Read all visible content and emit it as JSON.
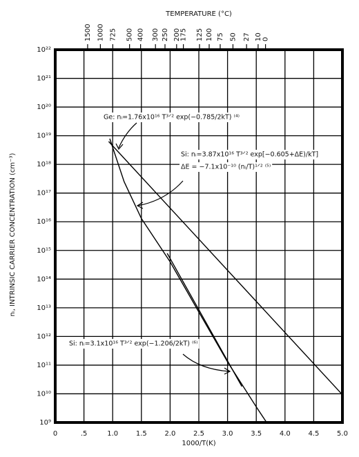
{
  "chart_data": {
    "type": "line",
    "top_axis_label": "TEMPERATURE (°C)",
    "x_axis_label": "1000/T(K)",
    "y_axis_label": "nᵢ, INTRINSIC CARRIER CONCENTRATION (cm⁻³)",
    "xlim": [
      0,
      5
    ],
    "xticks": [
      0,
      {
        "value": 0.5,
        "label": ".5"
      },
      {
        "value": 1,
        "label": "1.0"
      },
      1.5,
      {
        "value": 2,
        "label": "2.0"
      },
      2.5,
      {
        "value": 3,
        "label": "3.0"
      },
      3.5,
      {
        "value": 4,
        "label": "4.0"
      },
      4.5,
      {
        "value": 5,
        "label": "5.0"
      }
    ],
    "x2ticks": [
      {
        "value": 0.564,
        "label": "1500"
      },
      {
        "value": 0.786,
        "label": "1000"
      },
      {
        "value": 1.002,
        "label": "725"
      },
      {
        "value": 1.294,
        "label": "500"
      },
      {
        "value": 1.486,
        "label": "400"
      },
      {
        "value": 1.745,
        "label": "300"
      },
      {
        "value": 1.911,
        "label": "250"
      },
      {
        "value": 2.113,
        "label": "200"
      },
      {
        "value": 2.231,
        "label": "175"
      },
      {
        "value": 2.512,
        "label": "125"
      },
      {
        "value": 2.68,
        "label": "100"
      },
      {
        "value": 2.872,
        "label": "75"
      },
      {
        "value": 3.094,
        "label": "50"
      },
      {
        "value": 3.331,
        "label": "27"
      },
      {
        "value": 3.532,
        "label": "10"
      },
      {
        "value": 3.661,
        "label": "0"
      }
    ],
    "ylim": [
      1000000000.0,
      1e+22
    ],
    "yticks": [
      {
        "value": 1000000000.0,
        "label": "10⁹"
      },
      {
        "value": 10000000000.0,
        "label": "10¹⁰"
      },
      {
        "value": 100000000000.0,
        "label": "10¹¹"
      },
      {
        "value": 1000000000000.0,
        "label": "10¹²"
      },
      {
        "value": 10000000000000.0,
        "label": "10¹³"
      },
      {
        "value": 100000000000000.0,
        "label": "10¹⁴"
      },
      {
        "value": 1000000000000000.0,
        "label": "10¹⁵"
      },
      {
        "value": 1e+16,
        "label": "10¹⁶"
      },
      {
        "value": 1e+17,
        "label": "10¹⁷"
      },
      {
        "value": 1e+18,
        "label": "10¹⁸"
      },
      {
        "value": 1e+19,
        "label": "10¹⁹"
      },
      {
        "value": 1e+20,
        "label": "10²⁰"
      },
      {
        "value": 1e+21,
        "label": "10²¹"
      },
      {
        "value": 1e+22,
        "label": "10²²"
      }
    ],
    "log_scale_y": true,
    "grid": true,
    "series": [
      {
        "color": "#000000",
        "x": [
          0.93,
          5.0
        ],
        "values": [
          6.3e+18,
          9300000000.0
        ]
      },
      {
        "color": "#000000",
        "x": [
          0.95,
          1.2,
          1.5,
          2.0,
          2.5,
          3.0,
          3.5,
          3.68
        ],
        "values": [
          7.9e+18,
          2.5e+17,
          1.3e+16,
          400000000000000.0,
          7100000000000.0,
          130000000000.0,
          3500000000.0,
          1000000000.0
        ]
      },
      {
        "color": "#000000",
        "x": [
          1.95,
          3.25
        ],
        "values": [
          790000000000000.0,
          18000000000.0
        ]
      }
    ],
    "annotations": [
      "Ge: nᵢ=1.76x10¹⁶ T³ᐟ² exp(−0.785/2kT) ⁽⁴⁾",
      "Si: nᵢ=3.87x10¹⁶ T³ᐟ² exp[−0.605+ΔE)/kT]",
      "ΔE = −7.1x10⁻¹⁰ (nᵢ/T)¹ᐟ² ⁽⁵⁾",
      "Si: nᵢ=3.1x10¹⁶ T³ᐟ² exp(−1.206/2kT) ⁽⁶⁾"
    ]
  }
}
